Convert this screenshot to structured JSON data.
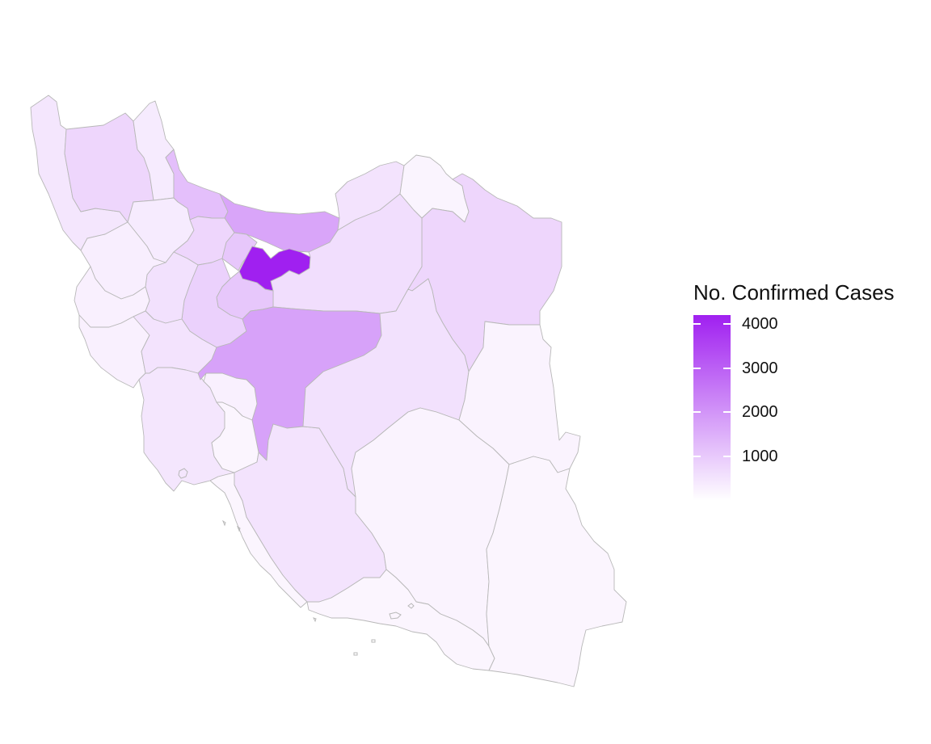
{
  "legend": {
    "title": "No. Confirmed Cases",
    "ticks": [
      {
        "value": 4000,
        "label": "4000"
      },
      {
        "value": 3000,
        "label": "3000"
      },
      {
        "value": 2000,
        "label": "2000"
      },
      {
        "value": 1000,
        "label": "1000"
      }
    ],
    "range": [
      0,
      4200
    ],
    "color_low": "#ffffff",
    "color_high": "#a020f0"
  },
  "colors": {
    "border": "#b8b8b8",
    "background": "#ffffff"
  },
  "chart_data": {
    "type": "choropleth",
    "value_name": "No. Confirmed Cases",
    "scale": {
      "min": 0,
      "max": 4200
    },
    "regions": [
      {
        "id": "west-azerbaijan",
        "value": 400
      },
      {
        "id": "east-azerbaijan",
        "value": 700
      },
      {
        "id": "ardabil",
        "value": 300
      },
      {
        "id": "gilan",
        "value": 1150
      },
      {
        "id": "mazandaran",
        "value": 1650
      },
      {
        "id": "golestan",
        "value": 450
      },
      {
        "id": "north-khorasan",
        "value": 120
      },
      {
        "id": "razavi-khorasan",
        "value": 700
      },
      {
        "id": "zanjan",
        "value": 300
      },
      {
        "id": "qazvin",
        "value": 700
      },
      {
        "id": "alborz",
        "value": 1000
      },
      {
        "id": "tehran",
        "value": 4200
      },
      {
        "id": "semnan",
        "value": 550
      },
      {
        "id": "qom",
        "value": 1000
      },
      {
        "id": "markazi",
        "value": 800
      },
      {
        "id": "hamadan",
        "value": 500
      },
      {
        "id": "kurdistan",
        "value": 250
      },
      {
        "id": "kermanshah",
        "value": 200
      },
      {
        "id": "ilam",
        "value": 200
      },
      {
        "id": "lorestan",
        "value": 450
      },
      {
        "id": "khuzestan",
        "value": 400
      },
      {
        "id": "isfahan",
        "value": 1700
      },
      {
        "id": "chaharmahal",
        "value": 200
      },
      {
        "id": "kohgiluyeh",
        "value": 100
      },
      {
        "id": "bushehr",
        "value": 100
      },
      {
        "id": "fars",
        "value": 450
      },
      {
        "id": "yazd",
        "value": 500
      },
      {
        "id": "south-khorasan",
        "value": 150
      },
      {
        "id": "kerman",
        "value": 150
      },
      {
        "id": "hormozgan",
        "value": 100
      },
      {
        "id": "sistan-baluchestan",
        "value": 100
      }
    ]
  }
}
